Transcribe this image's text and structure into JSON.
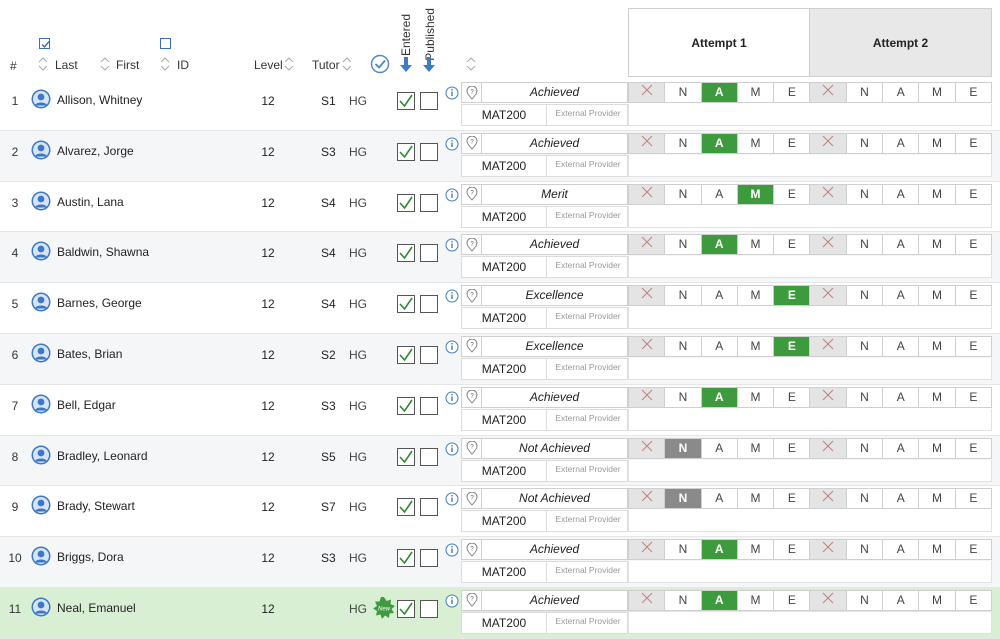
{
  "header": {
    "num": "#",
    "last": "Last",
    "first": "First",
    "id": "ID",
    "level": "Level",
    "tutor": "Tutor",
    "entered": "Entered",
    "published": "Published",
    "attempt1": "Attempt 1",
    "attempt2": "Attempt 2"
  },
  "grade_labels": [
    "N",
    "A",
    "M",
    "E"
  ],
  "provider_label": "External Provider",
  "colors": {
    "selected": "#3d9a3d",
    "selected_fail": "#8a8a8a",
    "avatar": "#3c78c8",
    "new_row": "#d9efd3"
  },
  "students": [
    {
      "num": "1",
      "name": "Allison, Whitney",
      "level": "12",
      "tutor": "S1",
      "group": "HG",
      "result": "Achieved",
      "code": "MAT200",
      "grade": "A",
      "new": false
    },
    {
      "num": "2",
      "name": "Alvarez, Jorge",
      "level": "12",
      "tutor": "S3",
      "group": "HG",
      "result": "Achieved",
      "code": "MAT200",
      "grade": "A",
      "new": false
    },
    {
      "num": "3",
      "name": "Austin, Lana",
      "level": "12",
      "tutor": "S4",
      "group": "HG",
      "result": "Merit",
      "code": "MAT200",
      "grade": "M",
      "new": false
    },
    {
      "num": "4",
      "name": "Baldwin, Shawna",
      "level": "12",
      "tutor": "S4",
      "group": "HG",
      "result": "Achieved",
      "code": "MAT200",
      "grade": "A",
      "new": false
    },
    {
      "num": "5",
      "name": "Barnes, George",
      "level": "12",
      "tutor": "S4",
      "group": "HG",
      "result": "Excellence",
      "code": "MAT200",
      "grade": "E",
      "new": false
    },
    {
      "num": "6",
      "name": "Bates, Brian",
      "level": "12",
      "tutor": "S2",
      "group": "HG",
      "result": "Excellence",
      "code": "MAT200",
      "grade": "E",
      "new": false
    },
    {
      "num": "7",
      "name": "Bell, Edgar",
      "level": "12",
      "tutor": "S3",
      "group": "HG",
      "result": "Achieved",
      "code": "MAT200",
      "grade": "A",
      "new": false
    },
    {
      "num": "8",
      "name": "Bradley, Leonard",
      "level": "12",
      "tutor": "S5",
      "group": "HG",
      "result": "Not Achieved",
      "code": "MAT200",
      "grade": "N",
      "new": false
    },
    {
      "num": "9",
      "name": "Brady, Stewart",
      "level": "12",
      "tutor": "S7",
      "group": "HG",
      "result": "Not Achieved",
      "code": "MAT200",
      "grade": "N",
      "new": false
    },
    {
      "num": "10",
      "name": "Briggs, Dora",
      "level": "12",
      "tutor": "S3",
      "group": "HG",
      "result": "Achieved",
      "code": "MAT200",
      "grade": "A",
      "new": false
    },
    {
      "num": "11",
      "name": "Neal, Emanuel",
      "level": "12",
      "tutor": "",
      "group": "HG",
      "result": "Achieved",
      "code": "MAT200",
      "grade": "A",
      "new": true,
      "badge": "New"
    }
  ]
}
